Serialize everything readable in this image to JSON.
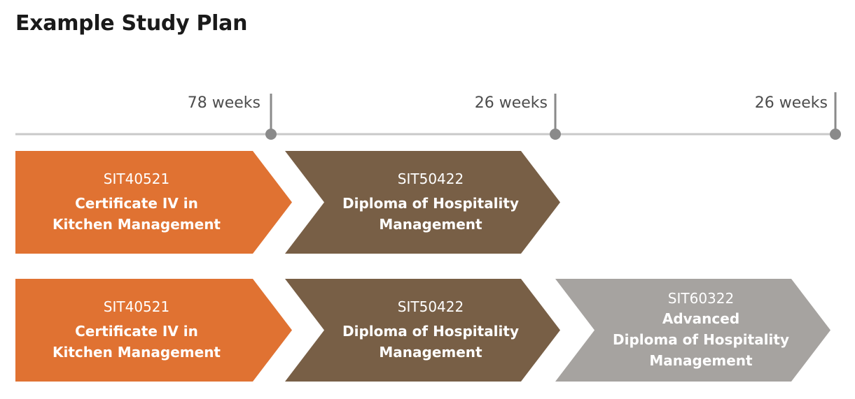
{
  "title": "Example Study Plan",
  "timeline": {
    "durations": [
      "78 weeks",
      "26 weeks",
      "26 weeks"
    ]
  },
  "colors": {
    "certificate": "#e07232",
    "diploma": "#785f46",
    "advanced": "#a6a3a0",
    "timeline_line": "#c9c9c9",
    "timeline_marker": "#8a8a8a"
  },
  "rows": [
    {
      "steps": [
        {
          "code": "SIT40521",
          "name_line1": "Certificate IV in",
          "name_line2": "Kitchen Management"
        },
        {
          "code": "SIT50422",
          "name_line1": "Diploma of Hospitality",
          "name_line2": "Management"
        }
      ]
    },
    {
      "steps": [
        {
          "code": "SIT40521",
          "name_line1": "Certificate IV in",
          "name_line2": "Kitchen Management"
        },
        {
          "code": "SIT50422",
          "name_line1": "Diploma of Hospitality",
          "name_line2": "Management"
        },
        {
          "code": "SIT60322",
          "name_line1": "Advanced",
          "name_line2": "Diploma of Hospitality",
          "name_line3": "Management"
        }
      ]
    }
  ]
}
